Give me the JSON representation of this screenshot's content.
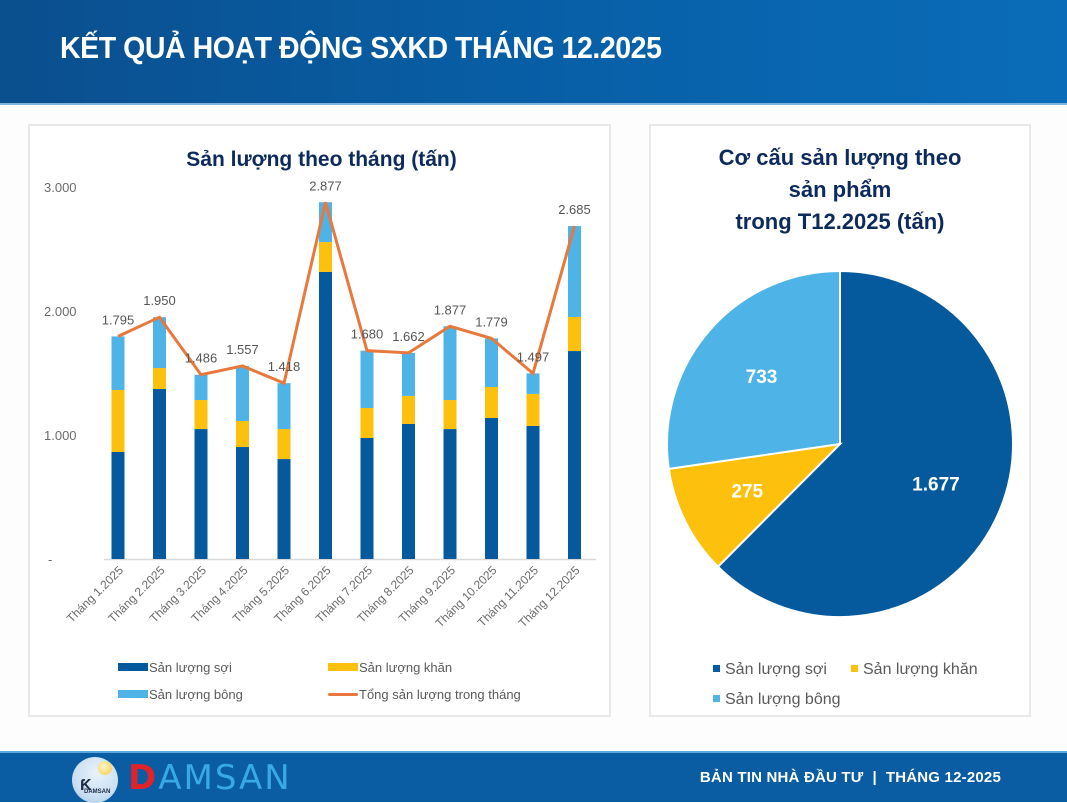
{
  "header": {
    "title": "KẾT QUẢ HOẠT ĐỘNG SXKD THÁNG 12.2025"
  },
  "colors": {
    "soi": "#045a9c",
    "khan": "#fdc00d",
    "bong": "#4eb3e6",
    "total_line": "#e8783c",
    "title_text": "#0d2a5c",
    "header_bg": "#0a5da3"
  },
  "chart_data": [
    {
      "type": "bar",
      "stacked": true,
      "title": "Sản lượng theo tháng (tấn)",
      "xlabel": "",
      "ylabel": "",
      "ylim": [
        0,
        3000
      ],
      "yticks": [
        0,
        1000,
        2000,
        3000
      ],
      "ytick_labels": [
        "-",
        "1.000",
        "2.000",
        "3.000"
      ],
      "grid": false,
      "categories": [
        "Tháng 1.2025",
        "Tháng 2.2025",
        "Tháng 3.2025",
        "Tháng 4.2025",
        "Tháng 5.2025",
        "Tháng 6.2025",
        "Tháng 7.2025",
        "Tháng 8.2025",
        "Tháng 9.2025",
        "Tháng 10.2025",
        "Tháng 11.2025",
        "Tháng 12.2025"
      ],
      "series": [
        {
          "name": "Sản lượng sợi",
          "kind": "bar",
          "color_key": "soi",
          "values": [
            863,
            1371,
            1048,
            903,
            806,
            2315,
            976,
            1089,
            1048,
            1137,
            1073,
            1677
          ]
        },
        {
          "name": "Sản lượng khăn",
          "kind": "bar",
          "color_key": "khan",
          "values": [
            500,
            169,
            234,
            210,
            242,
            241,
            242,
            226,
            234,
            250,
            258,
            275
          ]
        },
        {
          "name": "Sản lượng bông",
          "kind": "bar",
          "color_key": "bong",
          "values": [
            432,
            410,
            204,
            444,
            370,
            321,
            462,
            347,
            595,
            392,
            166,
            733
          ]
        },
        {
          "name": "Tổng sản lượng trong tháng",
          "kind": "line",
          "color_key": "total_line",
          "values": [
            1795,
            1950,
            1486,
            1557,
            1418,
            2877,
            1680,
            1662,
            1877,
            1779,
            1497,
            2685
          ]
        }
      ],
      "data_labels": [
        "1.795",
        "1.950",
        "1.486",
        "1.557",
        "1.418",
        "2.877",
        "1.680",
        "1.662",
        "1.877",
        "1.779",
        "1.497",
        "2.685"
      ],
      "legend": {
        "placement": "bottom",
        "items": [
          {
            "label": "Sản lượng sợi",
            "color_key": "soi",
            "marker": "bar"
          },
          {
            "label": "Sản lượng khăn",
            "color_key": "khan",
            "marker": "bar"
          },
          {
            "label": "Sản lượng bông",
            "color_key": "bong",
            "marker": "bar"
          },
          {
            "label": "Tổng sản lượng trong tháng",
            "color_key": "total_line",
            "marker": "line"
          }
        ]
      }
    },
    {
      "type": "pie",
      "title_lines": [
        "Cơ cấu sản lượng theo",
        "sản phẩm",
        "trong T12.2025 (tấn)"
      ],
      "slices": [
        {
          "label": "Sản lượng sợi",
          "value": 1677,
          "display": "1.677",
          "color_key": "soi"
        },
        {
          "label": "Sản lượng khăn",
          "value": 275,
          "display": "275",
          "color_key": "khan"
        },
        {
          "label": "Sản lượng bông",
          "value": 733,
          "display": "733",
          "color_key": "bong"
        }
      ],
      "start": "top",
      "direction": "clockwise",
      "legend": {
        "placement": "bottom"
      }
    }
  ],
  "footer": {
    "brand_initial": "D",
    "brand_rest": "AMSAN",
    "logo_small_text": "DAMSAN",
    "bulletin": "BẢN TIN NHÀ ĐẦU TƯ",
    "separator": "|",
    "period": "THÁNG 12-2025"
  }
}
